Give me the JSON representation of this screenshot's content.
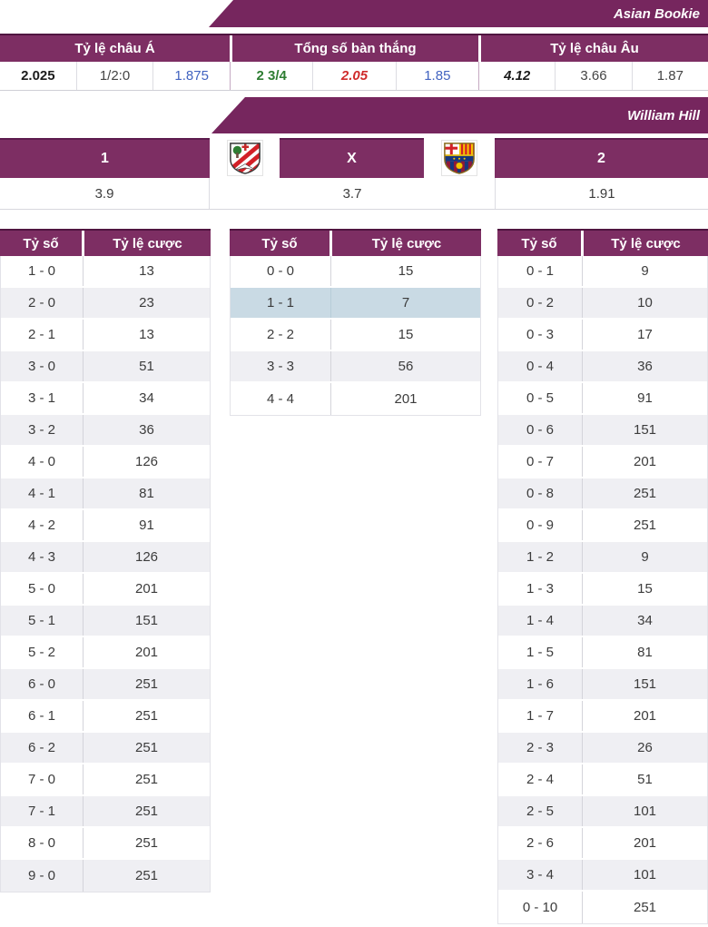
{
  "asian_bookie": {
    "title": "Asian Bookie",
    "groups": [
      {
        "label": "Tỷ lệ châu Á",
        "values": [
          "2.025",
          "1/2:0",
          "1.875"
        ]
      },
      {
        "label": "Tổng số bàn thắng",
        "values": [
          "2 3/4",
          "2.05",
          "1.85"
        ]
      },
      {
        "label": "Tỷ lệ châu Âu",
        "values": [
          "4.12",
          "3.66",
          "1.87"
        ]
      }
    ]
  },
  "william_hill": {
    "title": "William Hill",
    "outcomes": [
      "1",
      "X",
      "2"
    ],
    "odds": [
      "3.9",
      "3.7",
      "1.91"
    ],
    "home_logo_icon": "athletic-bilbao-crest",
    "away_logo_icon": "barcelona-crest"
  },
  "score_tables": [
    {
      "name": "home-win-scores",
      "header": [
        "Tỷ số",
        "Tỷ lệ cược"
      ],
      "rows": [
        [
          "1 - 0",
          "13"
        ],
        [
          "2 - 0",
          "23"
        ],
        [
          "2 - 1",
          "13"
        ],
        [
          "3 - 0",
          "51"
        ],
        [
          "3 - 1",
          "34"
        ],
        [
          "3 - 2",
          "36"
        ],
        [
          "4 - 0",
          "126"
        ],
        [
          "4 - 1",
          "81"
        ],
        [
          "4 - 2",
          "91"
        ],
        [
          "4 - 3",
          "126"
        ],
        [
          "5 - 0",
          "201"
        ],
        [
          "5 - 1",
          "151"
        ],
        [
          "5 - 2",
          "201"
        ],
        [
          "6 - 0",
          "251"
        ],
        [
          "6 - 1",
          "251"
        ],
        [
          "6 - 2",
          "251"
        ],
        [
          "7 - 0",
          "251"
        ],
        [
          "7 - 1",
          "251"
        ],
        [
          "8 - 0",
          "251"
        ],
        [
          "9 - 0",
          "251"
        ]
      ]
    },
    {
      "name": "draw-scores",
      "header": [
        "Tỷ số",
        "Tỷ lệ cược"
      ],
      "rows": [
        [
          "0 - 0",
          "15"
        ],
        [
          "1 - 1",
          "7"
        ],
        [
          "2 - 2",
          "15"
        ],
        [
          "3 - 3",
          "56"
        ],
        [
          "4 - 4",
          "201"
        ]
      ],
      "highlight_row": 1
    },
    {
      "name": "away-win-scores",
      "header": [
        "Tỷ số",
        "Tỷ lệ cược"
      ],
      "rows": [
        [
          "0 - 1",
          "9"
        ],
        [
          "0 - 2",
          "10"
        ],
        [
          "0 - 3",
          "17"
        ],
        [
          "0 - 4",
          "36"
        ],
        [
          "0 - 5",
          "91"
        ],
        [
          "0 - 6",
          "151"
        ],
        [
          "0 - 7",
          "201"
        ],
        [
          "0 - 8",
          "251"
        ],
        [
          "0 - 9",
          "251"
        ],
        [
          "1 - 2",
          "9"
        ],
        [
          "1 - 3",
          "15"
        ],
        [
          "1 - 4",
          "34"
        ],
        [
          "1 - 5",
          "81"
        ],
        [
          "1 - 6",
          "151"
        ],
        [
          "1 - 7",
          "201"
        ],
        [
          "2 - 3",
          "26"
        ],
        [
          "2 - 4",
          "51"
        ],
        [
          "2 - 5",
          "101"
        ],
        [
          "2 - 6",
          "201"
        ],
        [
          "3 - 4",
          "101"
        ],
        [
          "0 - 10",
          "251"
        ]
      ]
    }
  ],
  "colors": {
    "ribbon_purple": "#76265e",
    "header_purple": "#7d2e63",
    "header_dark_border": "#501540",
    "row_alt_gray": "#efeff3",
    "row_highlight_blue": "#c9dae4",
    "odds_blue": "#4163c0",
    "odds_green": "#2e7d32",
    "odds_red": "#cf2b2b",
    "body_text": "#3c3c3c"
  }
}
